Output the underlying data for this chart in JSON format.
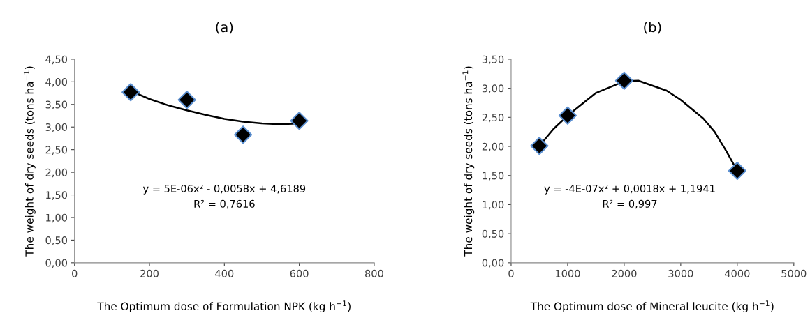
{
  "chart_data": [
    {
      "type": "scatter",
      "title": "(a)",
      "xlabel": "The Optimum dose of Formulation NPK (kg h$^{−1}$)",
      "ylabel": "The weight of dry seeds (tons ha$^{−1}$)",
      "xlim": [
        0,
        800
      ],
      "xticks": [
        0,
        200,
        400,
        600,
        800
      ],
      "ylim": [
        0,
        4.5
      ],
      "yticks": [
        {
          "value": 0,
          "label": "0,00"
        },
        {
          "value": 0.5,
          "label": "0,50"
        },
        {
          "value": 1,
          "label": "1,00"
        },
        {
          "value": 1.5,
          "label": "1,50"
        },
        {
          "value": 2,
          "label": "2,00"
        },
        {
          "value": 2.5,
          "label": "2,50"
        },
        {
          "value": 3,
          "label": "3,00"
        },
        {
          "value": 3.5,
          "label": "3,50"
        },
        {
          "value": 4,
          "label": "4,00"
        },
        {
          "value": 4.5,
          "label": "4,50"
        }
      ],
      "grid": false,
      "legend": false,
      "series": [
        {
          "marker": "diamond",
          "color": "#000000",
          "x": [
            150,
            300,
            450,
            600
          ],
          "values": [
            3.77,
            3.6,
            2.83,
            3.14
          ]
        },
        {
          "type": "line",
          "marker": "none",
          "color": "#000000",
          "line_style": "solid",
          "x": [
            150,
            200,
            250,
            300,
            350,
            400,
            450,
            500,
            550,
            600
          ],
          "values": [
            3.8,
            3.62,
            3.48,
            3.37,
            3.27,
            3.18,
            3.12,
            3.08,
            3.06,
            3.08
          ]
        }
      ],
      "annotations": [
        "y = 5E-06x² - 0,0058x + 4,6189",
        "R² = 0,7616"
      ]
    },
    {
      "type": "scatter",
      "title": "(b)",
      "xlabel": "The Optimum dose of Mineral leucite (kg h$^{−1}$)",
      "ylabel": "The weight of dry seeds (tons ha$^{−1}$)",
      "xlim": [
        0,
        5000
      ],
      "xticks": [
        0,
        1000,
        2000,
        3000,
        4000,
        5000
      ],
      "ylim": [
        0,
        3.5
      ],
      "yticks": [
        {
          "value": 0,
          "label": "0,00"
        },
        {
          "value": 0.5,
          "label": "0,50"
        },
        {
          "value": 1,
          "label": "1,00"
        },
        {
          "value": 1.5,
          "label": "1,50"
        },
        {
          "value": 2,
          "label": "2,00"
        },
        {
          "value": 2.5,
          "label": "2,50"
        },
        {
          "value": 3,
          "label": "3,00"
        },
        {
          "value": 3.5,
          "label": "3,50"
        }
      ],
      "grid": false,
      "legend": false,
      "series": [
        {
          "marker": "diamond",
          "color": "#000000",
          "x": [
            500,
            1000,
            2000,
            4000
          ],
          "values": [
            2.01,
            2.53,
            3.13,
            1.58
          ]
        },
        {
          "type": "line",
          "marker": "none",
          "color": "#000000",
          "line_style": "solid",
          "x": [
            500,
            750,
            1000,
            1500,
            2000,
            2250,
            2750,
            3000,
            3400,
            3600,
            3800,
            4000
          ],
          "values": [
            2.01,
            2.3,
            2.53,
            2.92,
            3.12,
            3.13,
            2.96,
            2.8,
            2.48,
            2.25,
            1.93,
            1.58
          ]
        }
      ],
      "annotations": [
        "y = -4E-07x² + 0,0018x + 1,1941",
        "R² = 0,997"
      ]
    }
  ]
}
